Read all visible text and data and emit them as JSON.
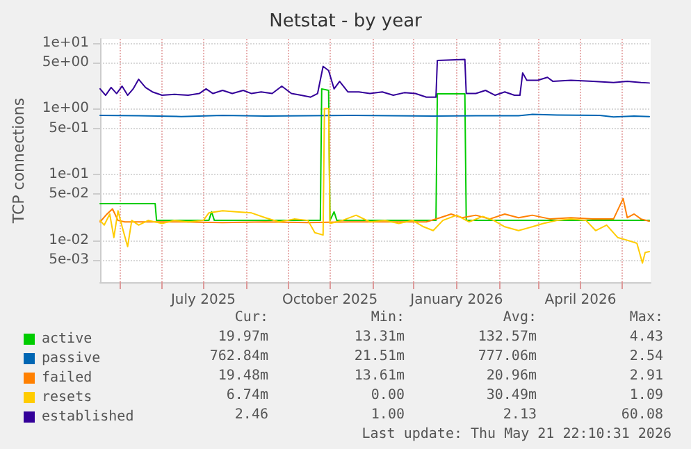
{
  "chart_data": {
    "type": "line",
    "title": "Netstat - by year",
    "ylabel": "TCP connections",
    "log": true,
    "grid": true,
    "legend": "bottom",
    "marker": "none",
    "line_style": "solid",
    "xlim": [
      "2025-04-17",
      "2026-05-22"
    ],
    "xticks": [
      {
        "value": "2025-05-01",
        "label": null
      },
      {
        "value": "2025-06-01",
        "label": null
      },
      {
        "value": "2025-07-01",
        "label": "July 2025"
      },
      {
        "value": "2025-08-01",
        "label": null
      },
      {
        "value": "2025-09-01",
        "label": null
      },
      {
        "value": "2025-10-01",
        "label": "October 2025"
      },
      {
        "value": "2025-11-01",
        "label": null
      },
      {
        "value": "2025-12-01",
        "label": null
      },
      {
        "value": "2026-01-01",
        "label": "January 2026"
      },
      {
        "value": "2026-02-01",
        "label": null
      },
      {
        "value": "2026-03-01",
        "label": null
      },
      {
        "value": "2026-04-01",
        "label": "April 2026"
      },
      {
        "value": "2026-05-01",
        "label": null
      }
    ],
    "ylim": [
      0.0023,
      11.5
    ],
    "yticks": [
      {
        "value": 0.005,
        "label": "5e-03"
      },
      {
        "value": 0.01,
        "label": "1e-02"
      },
      {
        "value": 0.05,
        "label": "5e-02"
      },
      {
        "value": 0.1,
        "label": "1e-01"
      },
      {
        "value": 0.5,
        "label": "5e-01"
      },
      {
        "value": 1,
        "label": "1e+00"
      },
      {
        "value": 5,
        "label": "5e+00"
      },
      {
        "value": 10,
        "label": "1e+01"
      }
    ],
    "series": [
      {
        "name": "active",
        "color": "#00cc00",
        "x": [
          "2025-04-17",
          "2025-05-27",
          "2025-05-28",
          "2025-07-05",
          "2025-07-07",
          "2025-07-09",
          "2025-09-24",
          "2025-09-25",
          "2025-09-30",
          "2025-10-01",
          "2025-10-04",
          "2025-10-06",
          "2025-12-17",
          "2025-12-18",
          "2026-01-07",
          "2026-01-08",
          "2026-05-21"
        ],
        "values": [
          0.036,
          0.036,
          0.02,
          0.02,
          0.027,
          0.02,
          0.02,
          2.0,
          1.9,
          0.02,
          0.027,
          0.02,
          0.02,
          1.68,
          1.68,
          0.02,
          0.02
        ]
      },
      {
        "name": "passive",
        "color": "#0066b3",
        "x": [
          "2025-04-17",
          "2025-05-15",
          "2025-06-15",
          "2025-07-15",
          "2025-08-15",
          "2025-09-15",
          "2025-10-15",
          "2025-11-15",
          "2025-12-15",
          "2026-01-15",
          "2026-02-15",
          "2026-02-25",
          "2026-03-15",
          "2026-04-15",
          "2026-04-25",
          "2026-05-10",
          "2026-05-21"
        ],
        "values": [
          0.79,
          0.78,
          0.76,
          0.79,
          0.77,
          0.78,
          0.79,
          0.78,
          0.77,
          0.78,
          0.78,
          0.82,
          0.8,
          0.79,
          0.75,
          0.77,
          0.76
        ]
      },
      {
        "name": "failed",
        "color": "#ff8000",
        "x": [
          "2025-04-17",
          "2025-04-22",
          "2025-04-26",
          "2025-04-30",
          "2025-05-05",
          "2025-06-15",
          "2025-07-15",
          "2025-08-15",
          "2025-09-15",
          "2025-10-15",
          "2025-11-15",
          "2025-12-10",
          "2025-12-20",
          "2025-12-28",
          "2026-01-05",
          "2026-01-15",
          "2026-01-25",
          "2026-02-05",
          "2026-02-15",
          "2026-02-25",
          "2026-03-10",
          "2026-03-25",
          "2026-04-10",
          "2026-04-25",
          "2026-05-02",
          "2026-05-05",
          "2026-05-10",
          "2026-05-15",
          "2026-05-21"
        ],
        "values": [
          0.019,
          0.025,
          0.03,
          0.02,
          0.019,
          0.019,
          0.0185,
          0.019,
          0.0185,
          0.019,
          0.019,
          0.019,
          0.022,
          0.025,
          0.022,
          0.024,
          0.021,
          0.025,
          0.022,
          0.024,
          0.021,
          0.022,
          0.021,
          0.021,
          0.043,
          0.022,
          0.025,
          0.021,
          0.0195
        ]
      },
      {
        "name": "resets",
        "color": "#ffcc00",
        "x": [
          "2025-04-17",
          "2025-04-20",
          "2025-04-24",
          "2025-04-27",
          "2025-04-30",
          "2025-05-03",
          "2025-05-07",
          "2025-05-10",
          "2025-05-15",
          "2025-05-22",
          "2025-06-01",
          "2025-06-10",
          "2025-06-20",
          "2025-07-01",
          "2025-07-05",
          "2025-07-15",
          "2025-07-25",
          "2025-08-05",
          "2025-08-15",
          "2025-08-25",
          "2025-09-05",
          "2025-09-15",
          "2025-09-20",
          "2025-09-26",
          "2025-09-27",
          "2025-09-30",
          "2025-10-01",
          "2025-10-10",
          "2025-10-20",
          "2025-10-30",
          "2025-11-10",
          "2025-11-20",
          "2025-11-30",
          "2025-12-08",
          "2025-12-15",
          "2025-12-22",
          "2026-01-01",
          "2026-01-10",
          "2026-01-20",
          "2026-01-28",
          "2026-02-05",
          "2026-02-15",
          "2026-02-25",
          "2026-03-05",
          "2026-03-15",
          "2026-03-25",
          "2026-04-05",
          "2026-04-12",
          "2026-04-20",
          "2026-04-28",
          "2026-05-05",
          "2026-05-12",
          "2026-05-16",
          "2026-05-18",
          "2026-05-21"
        ],
        "values": [
          0.02,
          0.017,
          0.025,
          0.011,
          0.028,
          0.016,
          0.008,
          0.02,
          0.017,
          0.02,
          0.018,
          0.02,
          0.019,
          0.02,
          0.026,
          0.028,
          0.027,
          0.026,
          0.022,
          0.019,
          0.021,
          0.02,
          0.013,
          0.012,
          1.0,
          1.0,
          0.018,
          0.02,
          0.024,
          0.019,
          0.02,
          0.018,
          0.02,
          0.016,
          0.014,
          0.02,
          0.024,
          0.019,
          0.023,
          0.02,
          0.016,
          0.014,
          0.016,
          0.018,
          0.02,
          0.021,
          0.02,
          0.014,
          0.017,
          0.011,
          0.01,
          0.009,
          0.0045,
          0.0065,
          0.0067
        ]
      },
      {
        "name": "established",
        "color": "#330099",
        "x": [
          "2025-04-17",
          "2025-04-21",
          "2025-04-25",
          "2025-04-29",
          "2025-05-03",
          "2025-05-07",
          "2025-05-11",
          "2025-05-15",
          "2025-05-20",
          "2025-05-25",
          "2025-06-01",
          "2025-06-10",
          "2025-06-20",
          "2025-06-28",
          "2025-07-03",
          "2025-07-08",
          "2025-07-15",
          "2025-07-22",
          "2025-07-30",
          "2025-08-05",
          "2025-08-12",
          "2025-08-20",
          "2025-08-27",
          "2025-09-03",
          "2025-09-10",
          "2025-09-17",
          "2025-09-22",
          "2025-09-26",
          "2025-09-30",
          "2025-10-04",
          "2025-10-08",
          "2025-10-14",
          "2025-10-22",
          "2025-10-30",
          "2025-11-08",
          "2025-11-16",
          "2025-11-24",
          "2025-12-02",
          "2025-12-10",
          "2025-12-17",
          "2025-12-18",
          "2026-01-07",
          "2026-01-08",
          "2026-01-15",
          "2026-01-22",
          "2026-01-29",
          "2026-02-05",
          "2026-02-12",
          "2026-02-16",
          "2026-02-18",
          "2026-02-21",
          "2026-03-01",
          "2026-03-08",
          "2026-03-12",
          "2026-03-25",
          "2026-04-10",
          "2026-04-25",
          "2026-05-05",
          "2026-05-15",
          "2026-05-21"
        ],
        "values": [
          2.0,
          1.6,
          2.1,
          1.7,
          2.2,
          1.6,
          2.0,
          2.8,
          2.1,
          1.8,
          1.6,
          1.65,
          1.6,
          1.7,
          2.0,
          1.7,
          1.9,
          1.7,
          1.9,
          1.7,
          1.8,
          1.7,
          2.2,
          1.7,
          1.6,
          1.5,
          1.7,
          4.4,
          3.8,
          2.0,
          2.6,
          1.8,
          1.8,
          1.7,
          1.8,
          1.6,
          1.75,
          1.7,
          1.5,
          1.5,
          5.4,
          5.6,
          1.7,
          1.7,
          1.9,
          1.6,
          1.8,
          1.6,
          1.6,
          3.5,
          2.7,
          2.7,
          3.0,
          2.6,
          2.7,
          2.6,
          2.5,
          2.6,
          2.5,
          2.46
        ]
      }
    ],
    "annotations": [
      "Cur:",
      "Min:",
      "Avg:",
      "Max:",
      "19.97m",
      "13.31m",
      "132.57m",
      "4.43",
      "762.84m",
      "21.51m",
      "777.06m",
      "2.54",
      "19.48m",
      "13.61m",
      "20.96m",
      "2.91",
      "6.74m",
      "0.00",
      "30.49m",
      "1.09",
      "2.46",
      "1.00",
      "2.13",
      "60.08",
      "Last update: Thu May 21 22:10:31 2026"
    ]
  }
}
